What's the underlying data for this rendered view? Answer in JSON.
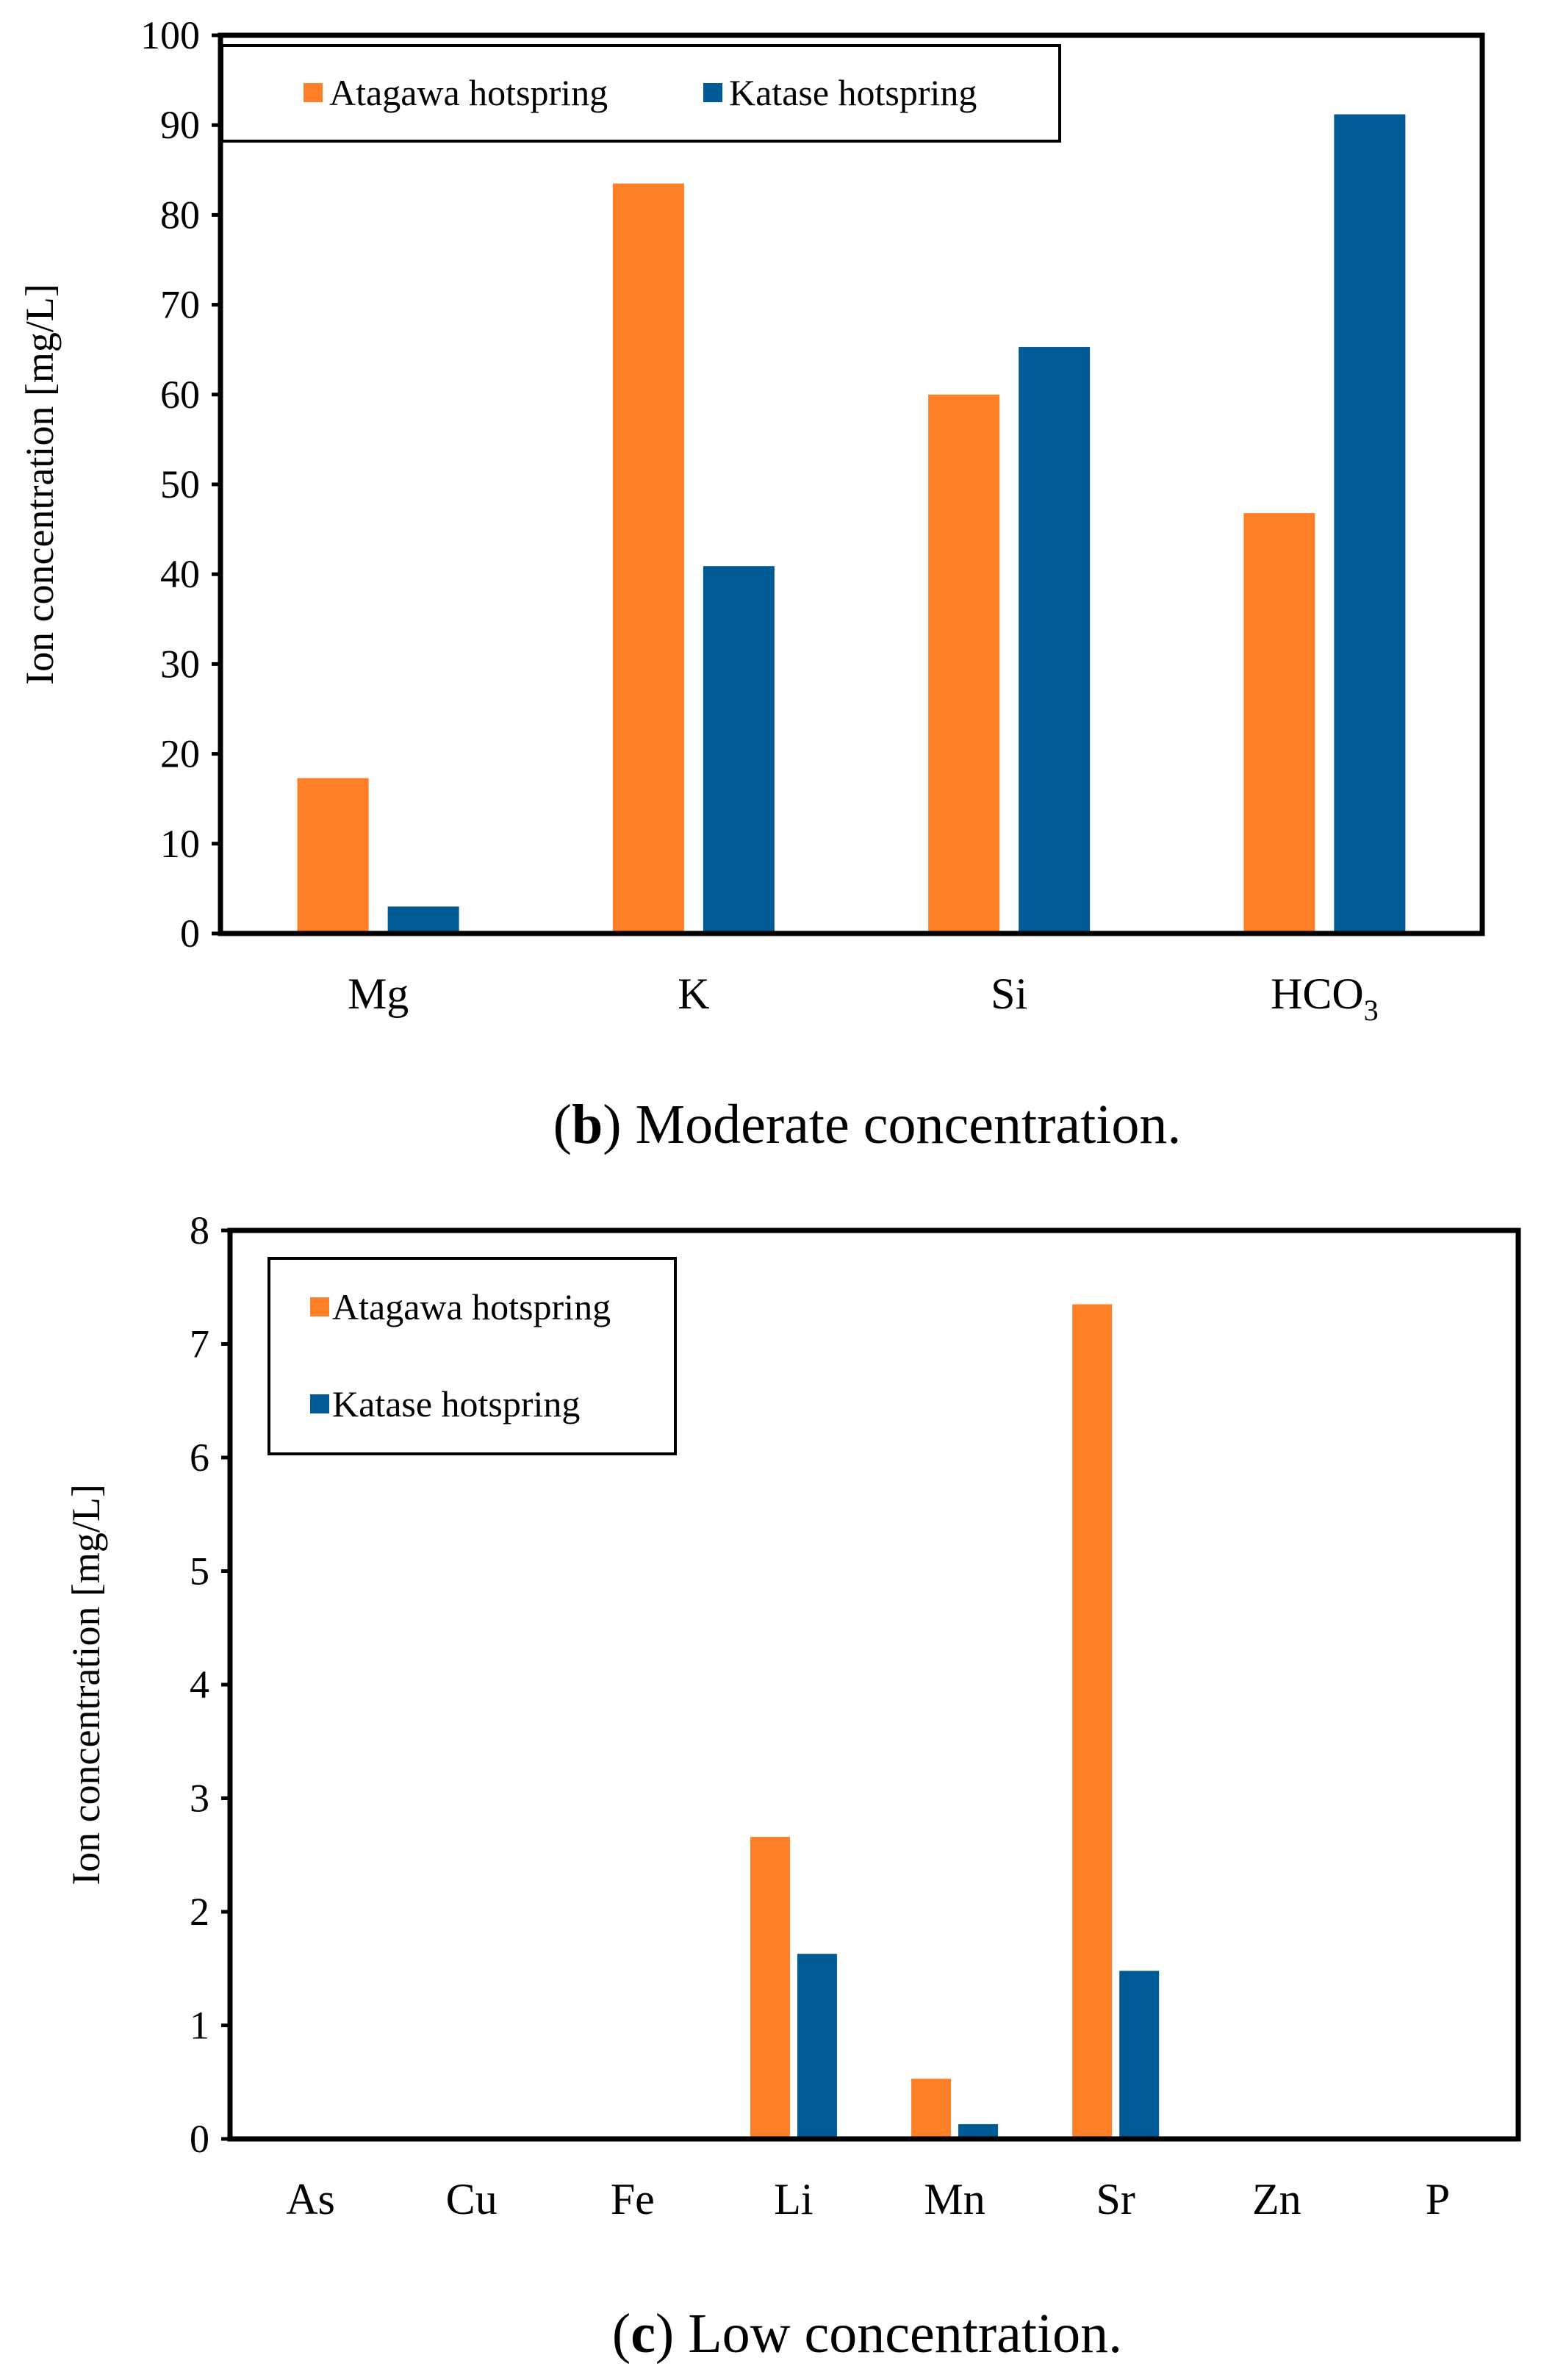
{
  "colors": {
    "atagawa": "#FF7F27",
    "katase": "#005A96"
  },
  "chart_data": [
    {
      "type": "bar",
      "caption": {
        "open": "(",
        "letter": "b",
        "rest": ") Moderate concentration."
      },
      "ylabel": "Ion concentration  [mg/L]",
      "xlabel": "",
      "ylim": [
        0,
        100
      ],
      "yticks": [
        0,
        10,
        20,
        30,
        40,
        50,
        60,
        70,
        80,
        90,
        100
      ],
      "categories": [
        "Mg",
        "K",
        "Si",
        "HCO3"
      ],
      "category_display": [
        {
          "main": "Mg",
          "sub": ""
        },
        {
          "main": "K",
          "sub": ""
        },
        {
          "main": "Si",
          "sub": ""
        },
        {
          "main": "HCO",
          "sub": "3"
        }
      ],
      "legend": {
        "placement": "top-left",
        "orientation": "horizontal"
      },
      "series": [
        {
          "name": "Atagawa hotspring",
          "values": [
            17.3,
            83.5,
            60.0,
            46.8
          ]
        },
        {
          "name": "Katase hotspring",
          "values": [
            3.0,
            40.9,
            65.3,
            91.2
          ]
        }
      ]
    },
    {
      "type": "bar",
      "caption": {
        "open": "(",
        "letter": "c",
        "rest": ") Low concentration."
      },
      "ylabel": "Ion concentration  [mg/L]",
      "xlabel": "",
      "ylim": [
        0,
        8
      ],
      "yticks": [
        0,
        1,
        2,
        3,
        4,
        5,
        6,
        7,
        8
      ],
      "categories": [
        "As",
        "Cu",
        "Fe",
        "Li",
        "Mn",
        "Sr",
        "Zn",
        "P"
      ],
      "category_display": [
        {
          "main": "As",
          "sub": ""
        },
        {
          "main": "Cu",
          "sub": ""
        },
        {
          "main": "Fe",
          "sub": ""
        },
        {
          "main": "Li",
          "sub": ""
        },
        {
          "main": "Mn",
          "sub": ""
        },
        {
          "main": "Sr",
          "sub": ""
        },
        {
          "main": "Zn",
          "sub": ""
        },
        {
          "main": "P",
          "sub": ""
        }
      ],
      "legend": {
        "placement": "top-left",
        "orientation": "vertical"
      },
      "series": [
        {
          "name": "Atagawa hotspring",
          "values": [
            0,
            0,
            0,
            2.66,
            0.53,
            7.35,
            0,
            0
          ]
        },
        {
          "name": "Katase hotspring",
          "values": [
            0,
            0,
            0,
            1.63,
            0.13,
            1.48,
            0,
            0
          ]
        }
      ]
    }
  ]
}
